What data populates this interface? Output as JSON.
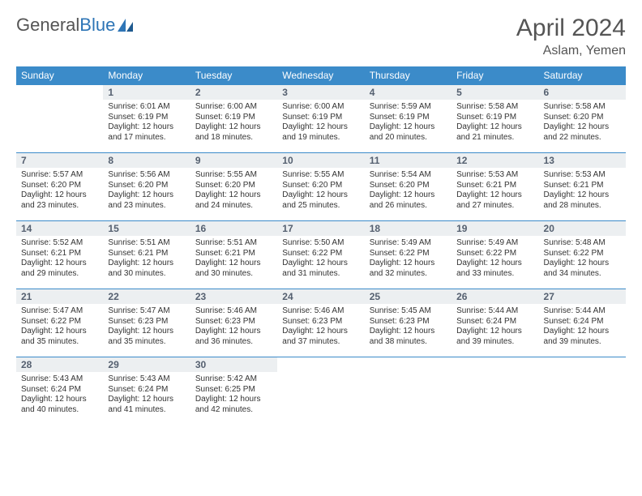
{
  "logo": {
    "text_gray": "General",
    "text_blue": "Blue"
  },
  "title": {
    "month": "April 2024",
    "location": "Aslam, Yemen"
  },
  "colors": {
    "header_bg": "#3b8bc9",
    "header_text": "#ffffff",
    "daynum_bg": "#eceff1",
    "daynum_text": "#556070",
    "cell_border": "#3b8bc9",
    "body_text": "#333333",
    "brand_gray": "#555555",
    "brand_blue": "#2e75b6"
  },
  "day_headers": [
    "Sunday",
    "Monday",
    "Tuesday",
    "Wednesday",
    "Thursday",
    "Friday",
    "Saturday"
  ],
  "weeks": [
    [
      null,
      {
        "n": "1",
        "sr": "Sunrise: 6:01 AM",
        "ss": "Sunset: 6:19 PM",
        "dl": "Daylight: 12 hours and 17 minutes."
      },
      {
        "n": "2",
        "sr": "Sunrise: 6:00 AM",
        "ss": "Sunset: 6:19 PM",
        "dl": "Daylight: 12 hours and 18 minutes."
      },
      {
        "n": "3",
        "sr": "Sunrise: 6:00 AM",
        "ss": "Sunset: 6:19 PM",
        "dl": "Daylight: 12 hours and 19 minutes."
      },
      {
        "n": "4",
        "sr": "Sunrise: 5:59 AM",
        "ss": "Sunset: 6:19 PM",
        "dl": "Daylight: 12 hours and 20 minutes."
      },
      {
        "n": "5",
        "sr": "Sunrise: 5:58 AM",
        "ss": "Sunset: 6:19 PM",
        "dl": "Daylight: 12 hours and 21 minutes."
      },
      {
        "n": "6",
        "sr": "Sunrise: 5:58 AM",
        "ss": "Sunset: 6:20 PM",
        "dl": "Daylight: 12 hours and 22 minutes."
      }
    ],
    [
      {
        "n": "7",
        "sr": "Sunrise: 5:57 AM",
        "ss": "Sunset: 6:20 PM",
        "dl": "Daylight: 12 hours and 23 minutes."
      },
      {
        "n": "8",
        "sr": "Sunrise: 5:56 AM",
        "ss": "Sunset: 6:20 PM",
        "dl": "Daylight: 12 hours and 23 minutes."
      },
      {
        "n": "9",
        "sr": "Sunrise: 5:55 AM",
        "ss": "Sunset: 6:20 PM",
        "dl": "Daylight: 12 hours and 24 minutes."
      },
      {
        "n": "10",
        "sr": "Sunrise: 5:55 AM",
        "ss": "Sunset: 6:20 PM",
        "dl": "Daylight: 12 hours and 25 minutes."
      },
      {
        "n": "11",
        "sr": "Sunrise: 5:54 AM",
        "ss": "Sunset: 6:20 PM",
        "dl": "Daylight: 12 hours and 26 minutes."
      },
      {
        "n": "12",
        "sr": "Sunrise: 5:53 AM",
        "ss": "Sunset: 6:21 PM",
        "dl": "Daylight: 12 hours and 27 minutes."
      },
      {
        "n": "13",
        "sr": "Sunrise: 5:53 AM",
        "ss": "Sunset: 6:21 PM",
        "dl": "Daylight: 12 hours and 28 minutes."
      }
    ],
    [
      {
        "n": "14",
        "sr": "Sunrise: 5:52 AM",
        "ss": "Sunset: 6:21 PM",
        "dl": "Daylight: 12 hours and 29 minutes."
      },
      {
        "n": "15",
        "sr": "Sunrise: 5:51 AM",
        "ss": "Sunset: 6:21 PM",
        "dl": "Daylight: 12 hours and 30 minutes."
      },
      {
        "n": "16",
        "sr": "Sunrise: 5:51 AM",
        "ss": "Sunset: 6:21 PM",
        "dl": "Daylight: 12 hours and 30 minutes."
      },
      {
        "n": "17",
        "sr": "Sunrise: 5:50 AM",
        "ss": "Sunset: 6:22 PM",
        "dl": "Daylight: 12 hours and 31 minutes."
      },
      {
        "n": "18",
        "sr": "Sunrise: 5:49 AM",
        "ss": "Sunset: 6:22 PM",
        "dl": "Daylight: 12 hours and 32 minutes."
      },
      {
        "n": "19",
        "sr": "Sunrise: 5:49 AM",
        "ss": "Sunset: 6:22 PM",
        "dl": "Daylight: 12 hours and 33 minutes."
      },
      {
        "n": "20",
        "sr": "Sunrise: 5:48 AM",
        "ss": "Sunset: 6:22 PM",
        "dl": "Daylight: 12 hours and 34 minutes."
      }
    ],
    [
      {
        "n": "21",
        "sr": "Sunrise: 5:47 AM",
        "ss": "Sunset: 6:22 PM",
        "dl": "Daylight: 12 hours and 35 minutes."
      },
      {
        "n": "22",
        "sr": "Sunrise: 5:47 AM",
        "ss": "Sunset: 6:23 PM",
        "dl": "Daylight: 12 hours and 35 minutes."
      },
      {
        "n": "23",
        "sr": "Sunrise: 5:46 AM",
        "ss": "Sunset: 6:23 PM",
        "dl": "Daylight: 12 hours and 36 minutes."
      },
      {
        "n": "24",
        "sr": "Sunrise: 5:46 AM",
        "ss": "Sunset: 6:23 PM",
        "dl": "Daylight: 12 hours and 37 minutes."
      },
      {
        "n": "25",
        "sr": "Sunrise: 5:45 AM",
        "ss": "Sunset: 6:23 PM",
        "dl": "Daylight: 12 hours and 38 minutes."
      },
      {
        "n": "26",
        "sr": "Sunrise: 5:44 AM",
        "ss": "Sunset: 6:24 PM",
        "dl": "Daylight: 12 hours and 39 minutes."
      },
      {
        "n": "27",
        "sr": "Sunrise: 5:44 AM",
        "ss": "Sunset: 6:24 PM",
        "dl": "Daylight: 12 hours and 39 minutes."
      }
    ],
    [
      {
        "n": "28",
        "sr": "Sunrise: 5:43 AM",
        "ss": "Sunset: 6:24 PM",
        "dl": "Daylight: 12 hours and 40 minutes."
      },
      {
        "n": "29",
        "sr": "Sunrise: 5:43 AM",
        "ss": "Sunset: 6:24 PM",
        "dl": "Daylight: 12 hours and 41 minutes."
      },
      {
        "n": "30",
        "sr": "Sunrise: 5:42 AM",
        "ss": "Sunset: 6:25 PM",
        "dl": "Daylight: 12 hours and 42 minutes."
      },
      null,
      null,
      null,
      null
    ]
  ]
}
